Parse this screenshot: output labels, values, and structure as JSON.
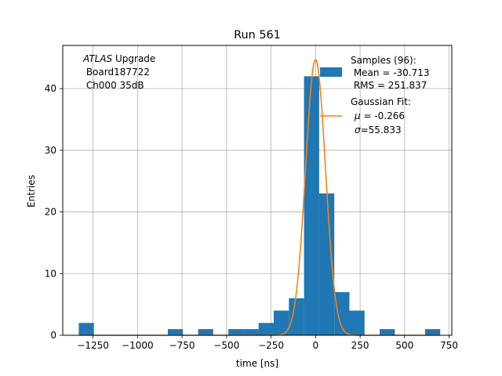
{
  "chart_data": {
    "type": "bar",
    "title": "Run 561",
    "xlabel": "time [ns]",
    "ylabel": "Entries",
    "xlim": [
      -1420,
      765
    ],
    "ylim": [
      0,
      47
    ],
    "grid": true,
    "x_ticks": [
      -1250,
      -1000,
      -750,
      -500,
      -250,
      0,
      250,
      500,
      750
    ],
    "x_tick_labels": [
      "−1250",
      "−1000",
      "−750",
      "−500",
      "−250",
      "0",
      "250",
      "500",
      "750"
    ],
    "y_ticks": [
      0,
      10,
      20,
      30,
      40
    ],
    "y_tick_labels": [
      "0",
      "10",
      "20",
      "30",
      "40"
    ],
    "annotation": {
      "atlas": "ATLAS",
      "line1_rest": " Upgrade",
      "line2": " Board187722",
      "line3": " Ch000 35dB"
    },
    "histogram": {
      "name": "Samples (96):",
      "color": "#1f77b4",
      "bins": [
        {
          "x0": -1330,
          "x1": -1245,
          "count": 2
        },
        {
          "x0": -830,
          "x1": -745,
          "count": 1
        },
        {
          "x0": -660,
          "x1": -575,
          "count": 1
        },
        {
          "x0": -490,
          "x1": -405,
          "count": 1
        },
        {
          "x0": -405,
          "x1": -320,
          "count": 1
        },
        {
          "x0": -320,
          "x1": -235,
          "count": 2
        },
        {
          "x0": -235,
          "x1": -150,
          "count": 4
        },
        {
          "x0": -150,
          "x1": -65,
          "count": 6
        },
        {
          "x0": -65,
          "x1": 20,
          "count": 42
        },
        {
          "x0": 20,
          "x1": 105,
          "count": 23
        },
        {
          "x0": 105,
          "x1": 190,
          "count": 7
        },
        {
          "x0": 190,
          "x1": 275,
          "count": 4
        },
        {
          "x0": 360,
          "x1": 445,
          "count": 1
        },
        {
          "x0": 615,
          "x1": 700,
          "count": 1
        }
      ]
    },
    "gaussian_fit": {
      "name": "Gaussian Fit:",
      "color": "#ff7f0e",
      "mu": -0.266,
      "sigma": 55.833,
      "amplitude": 44.7,
      "x_range": [
        -1330,
        700
      ]
    },
    "legend": {
      "placement": "top-right",
      "samples_title": "Samples (96):",
      "samples_mean": " Mean = -30.713",
      "samples_rms": " RMS = 251.837",
      "fit_title": "Gaussian Fit:",
      "fit_mu_symbol": "μ",
      "fit_mu_text": " = -0.266",
      "fit_sigma_symbol": "σ",
      "fit_sigma_text": "=55.833"
    }
  }
}
